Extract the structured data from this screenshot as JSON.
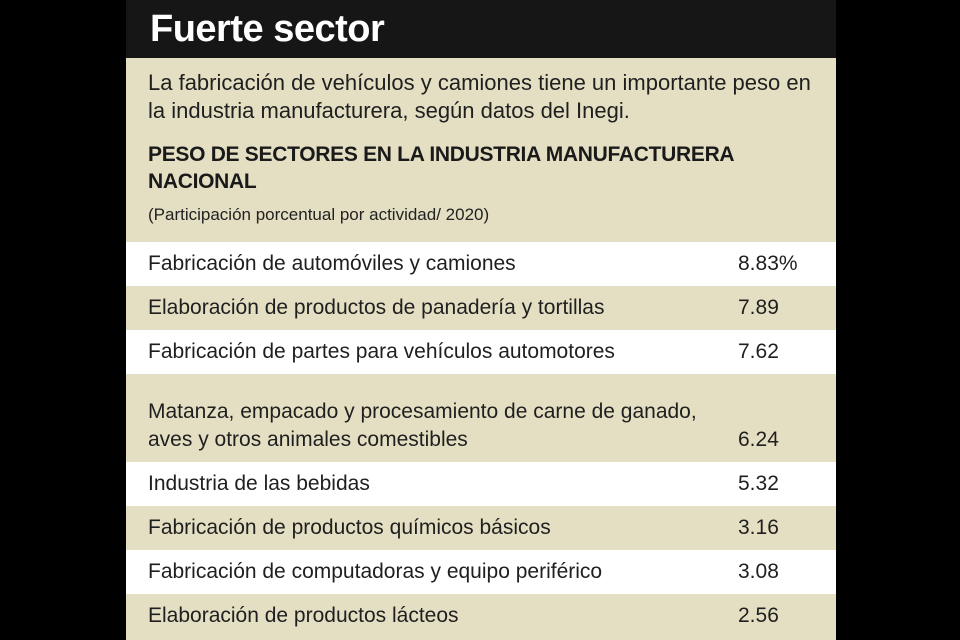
{
  "title": "Fuerte sector",
  "intro": "La fabricación de vehículos y camiones tiene un importante peso en la industria manufacturera, según datos del Inegi.",
  "table_title": "PESO DE SECTORES EN LA INDUSTRIA MANUFACTURERA NACIONAL",
  "table_subtitle": "(Participación porcentual por actividad/ 2020)",
  "colors": {
    "background": "#000000",
    "header": "#161616",
    "panel": "#e4dfc3",
    "row_light": "#ffffff",
    "text": "#1f1f1f"
  },
  "chart_data": {
    "type": "table",
    "title": "PESO DE SECTORES EN LA INDUSTRIA MANUFACTURERA NACIONAL",
    "subtitle": "(Participación porcentual por actividad/ 2020)",
    "categories": [
      "Fabricación de automóviles y camiones",
      "Elaboración de productos de panadería y tortillas",
      "Fabricación de partes para vehículos automotores",
      "Matanza, empacado y procesamiento de carne de ganado, aves y otros animales comestibles",
      "Industria de las bebidas",
      "Fabricación de productos químicos básicos",
      "Fabricación de computadoras y equipo periférico",
      "Elaboración de productos lácteos"
    ],
    "values": [
      8.83,
      7.89,
      7.62,
      6.24,
      5.32,
      3.16,
      3.08,
      2.56
    ],
    "value_labels": [
      "8.83%",
      "7.89",
      "7.62",
      "6.24",
      "5.32",
      "3.16",
      "3.08",
      "2.56"
    ]
  }
}
